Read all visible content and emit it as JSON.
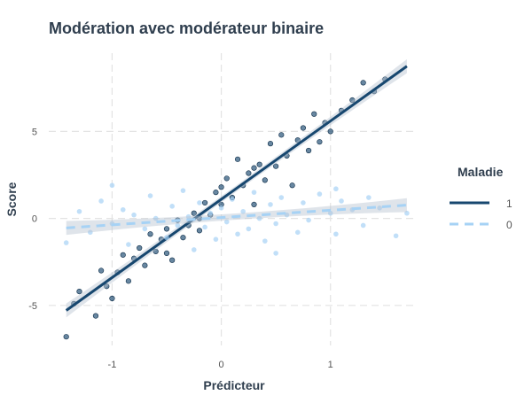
{
  "chart_data": {
    "type": "scatter",
    "title": "Modération avec modérateur binaire",
    "xlabel": "Prédicteur",
    "ylabel": "Score",
    "xlim": [
      -1.58,
      1.79
    ],
    "ylim": [
      -7.3,
      9.5
    ],
    "xticks": [
      -1,
      0,
      1
    ],
    "yticks": [
      -5,
      0,
      5
    ],
    "grid": true,
    "legend": {
      "title": "Maladie",
      "placement": "right"
    },
    "series": [
      {
        "name": "1",
        "color": "#17476f",
        "line_style": "solid",
        "fit": {
          "intercept": 1.1,
          "slope": 4.5,
          "x_range": [
            -1.42,
            1.7
          ]
        },
        "points": [
          [
            -1.42,
            -6.8
          ],
          [
            -1.35,
            -4.9
          ],
          [
            -1.3,
            -4.2
          ],
          [
            -1.15,
            -5.6
          ],
          [
            -1.1,
            -3.0
          ],
          [
            -1.05,
            -3.9
          ],
          [
            -1.0,
            -4.6
          ],
          [
            -0.95,
            -3.1
          ],
          [
            -0.9,
            -2.1
          ],
          [
            -0.85,
            -3.6
          ],
          [
            -0.8,
            -2.3
          ],
          [
            -0.75,
            -1.7
          ],
          [
            -0.7,
            -2.7
          ],
          [
            -0.65,
            -0.9
          ],
          [
            -0.6,
            -1.9
          ],
          [
            -0.55,
            -1.2
          ],
          [
            -0.5,
            -0.6
          ],
          [
            -0.45,
            -2.4
          ],
          [
            -0.4,
            -0.1
          ],
          [
            -0.35,
            -1.1
          ],
          [
            -0.3,
            -0.4
          ],
          [
            -0.25,
            0.3
          ],
          [
            -0.2,
            -0.7
          ],
          [
            -0.15,
            0.9
          ],
          [
            -0.1,
            0.2
          ],
          [
            -0.05,
            1.5
          ],
          [
            0.0,
            0.8
          ],
          [
            0.05,
            2.3
          ],
          [
            0.1,
            1.2
          ],
          [
            0.15,
            3.4
          ],
          [
            0.2,
            1.9
          ],
          [
            0.25,
            2.6
          ],
          [
            0.3,
            0.8
          ],
          [
            0.35,
            3.1
          ],
          [
            0.4,
            2.2
          ],
          [
            0.45,
            4.3
          ],
          [
            0.5,
            3.0
          ],
          [
            0.55,
            4.8
          ],
          [
            0.6,
            3.6
          ],
          [
            0.65,
            1.9
          ],
          [
            0.7,
            4.5
          ],
          [
            0.75,
            5.2
          ],
          [
            0.8,
            3.9
          ],
          [
            0.85,
            6.0
          ],
          [
            0.9,
            4.4
          ],
          [
            0.95,
            5.5
          ],
          [
            1.0,
            5.0
          ],
          [
            1.1,
            6.2
          ],
          [
            1.2,
            6.8
          ],
          [
            1.3,
            7.8
          ],
          [
            1.4,
            7.3
          ],
          [
            1.5,
            8.0
          ],
          [
            -0.5,
            -2.0
          ],
          [
            0.0,
            1.8
          ],
          [
            -0.2,
            0.0
          ],
          [
            0.3,
            2.9
          ]
        ]
      },
      {
        "name": "0",
        "color": "#a6d2f5",
        "line_style": "dashed",
        "fit": {
          "intercept": 0.05,
          "slope": 0.42,
          "x_range": [
            -1.42,
            1.7
          ]
        },
        "points": [
          [
            -1.42,
            -1.4
          ],
          [
            -1.3,
            0.4
          ],
          [
            -1.2,
            -0.8
          ],
          [
            -1.1,
            1.0
          ],
          [
            -1.0,
            -0.3
          ],
          [
            -0.9,
            0.5
          ],
          [
            -0.85,
            -1.5
          ],
          [
            -0.8,
            0.2
          ],
          [
            -0.7,
            -0.6
          ],
          [
            -0.65,
            1.3
          ],
          [
            -0.6,
            0.0
          ],
          [
            -0.5,
            -1.1
          ],
          [
            -0.45,
            0.7
          ],
          [
            -0.4,
            -0.4
          ],
          [
            -0.35,
            1.6
          ],
          [
            -0.3,
            0.1
          ],
          [
            -0.25,
            -1.8
          ],
          [
            -0.2,
            0.9
          ],
          [
            -0.15,
            -0.5
          ],
          [
            -0.1,
            0.3
          ],
          [
            -0.05,
            -1.2
          ],
          [
            0.0,
            0.6
          ],
          [
            0.05,
            -0.2
          ],
          [
            0.1,
            1.1
          ],
          [
            0.15,
            -0.9
          ],
          [
            0.2,
            0.4
          ],
          [
            0.25,
            -0.6
          ],
          [
            0.3,
            1.5
          ],
          [
            0.35,
            0.0
          ],
          [
            0.4,
            -1.3
          ],
          [
            0.45,
            0.8
          ],
          [
            0.5,
            -0.3
          ],
          [
            0.55,
            1.2
          ],
          [
            0.6,
            0.2
          ],
          [
            0.7,
            -0.8
          ],
          [
            0.75,
            0.9
          ],
          [
            0.8,
            -0.1
          ],
          [
            0.9,
            1.4
          ],
          [
            1.0,
            0.3
          ],
          [
            1.05,
            -0.9
          ],
          [
            1.1,
            1.0
          ],
          [
            1.2,
            0.5
          ],
          [
            1.3,
            -0.4
          ],
          [
            1.35,
            1.2
          ],
          [
            1.45,
            0.6
          ],
          [
            1.6,
            -1.0
          ],
          [
            1.7,
            0.3
          ],
          [
            -1.0,
            1.9
          ],
          [
            0.5,
            -2.0
          ],
          [
            1.05,
            1.7
          ]
        ]
      }
    ]
  }
}
